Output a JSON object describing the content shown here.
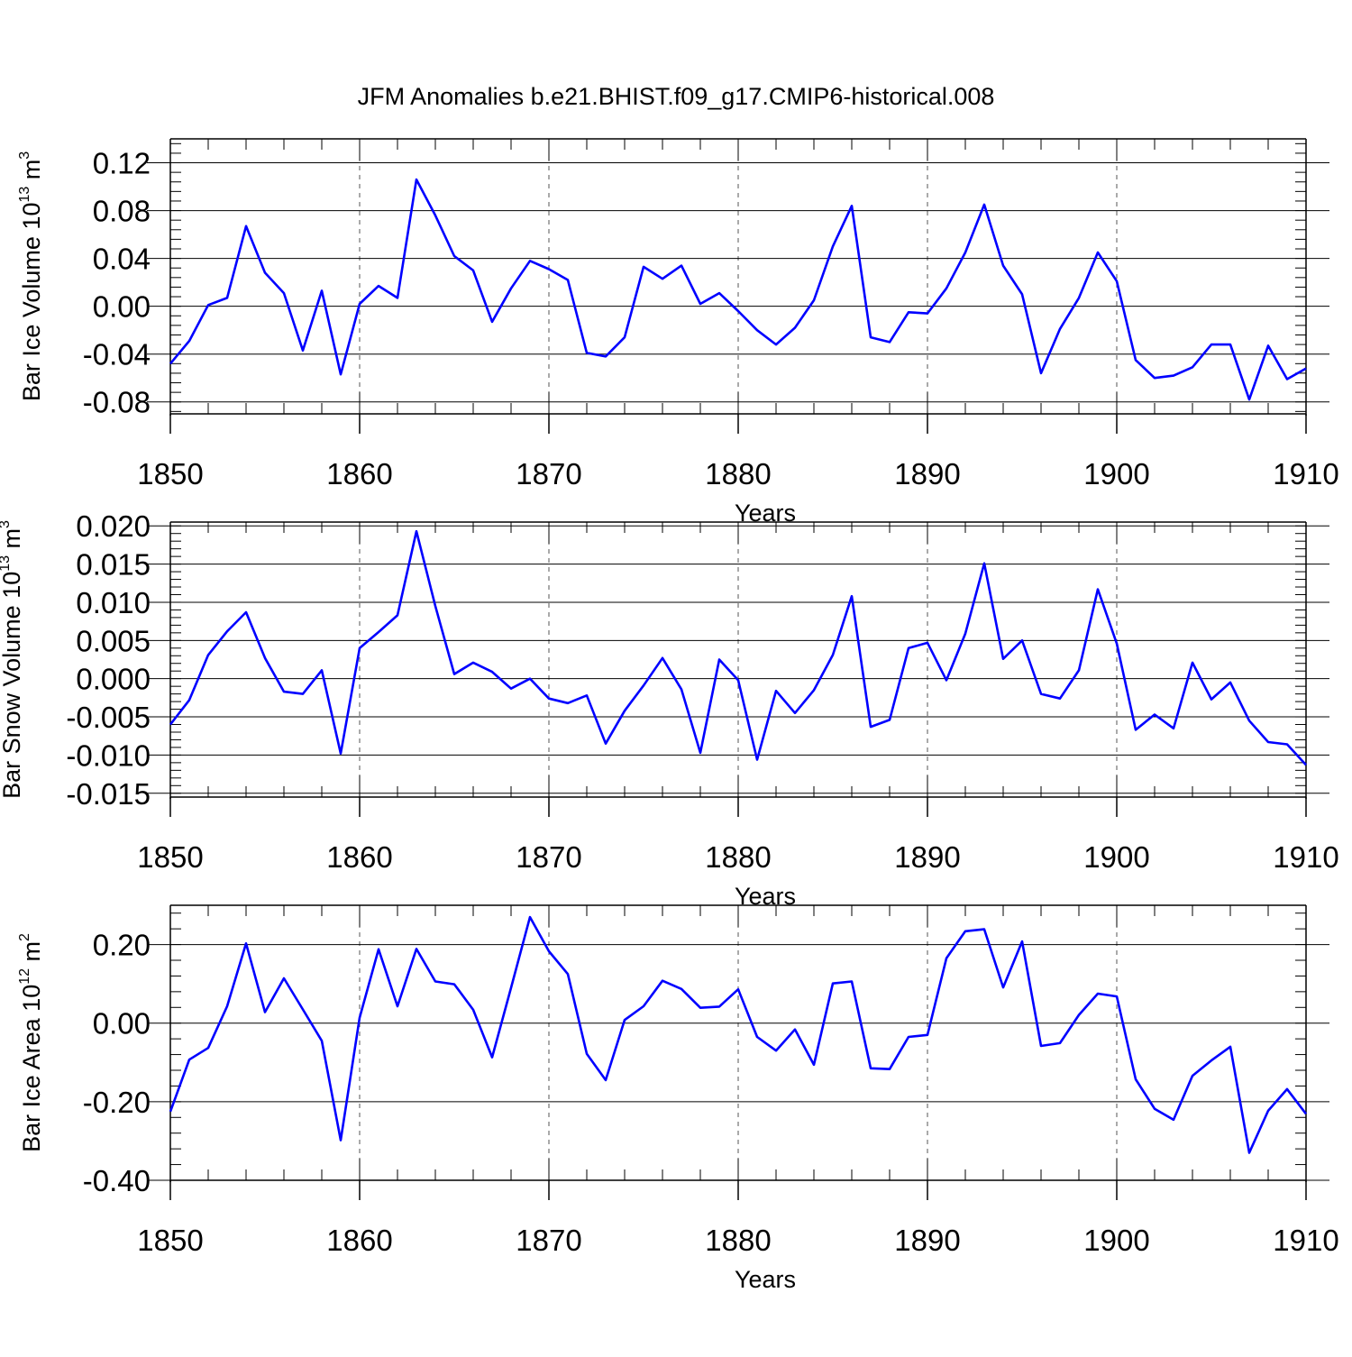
{
  "title": "JFM Anomalies b.e21.BHIST.f09_g17.CMIP6-historical.008",
  "colors": {
    "line": "#0000ff",
    "axis": "#000000",
    "grid": "#555555"
  },
  "chart_data": [
    {
      "type": "line",
      "title": "JFM Anomalies b.e21.BHIST.f09_g17.CMIP6-historical.008",
      "xlabel": "Years",
      "ylabel_main": "Bar Ice Volume 10",
      "ylabel_exp": "13",
      "ylabel_unit": "m",
      "ylabel_unit_exp": "3",
      "xlim": [
        1850,
        1910
      ],
      "ylim": [
        -0.09,
        0.14
      ],
      "x_ticks": [
        1850,
        1860,
        1870,
        1880,
        1890,
        1900,
        1910
      ],
      "x_tick_labels": [
        "1850",
        "1860",
        "1870",
        "1880",
        "1890",
        "1900",
        "1910"
      ],
      "y_ticks": [
        -0.08,
        -0.04,
        0.0,
        0.04,
        0.08,
        0.12
      ],
      "y_tick_labels": [
        "-0.08",
        "-0.04",
        "0.00",
        "0.04",
        "0.08",
        "0.12"
      ],
      "y_minor_step": 0.008,
      "x_start": 1850,
      "values": [
        -0.048,
        -0.029,
        0.001,
        0.007,
        0.067,
        0.028,
        0.011,
        -0.037,
        0.013,
        -0.057,
        0.002,
        0.017,
        0.007,
        0.106,
        0.076,
        0.042,
        0.03,
        -0.013,
        0.015,
        0.038,
        0.031,
        0.022,
        -0.039,
        -0.042,
        -0.026,
        0.033,
        0.023,
        0.034,
        0.002,
        0.011,
        -0.004,
        -0.02,
        -0.032,
        -0.018,
        0.005,
        0.05,
        0.084,
        -0.026,
        -0.03,
        -0.005,
        -0.006,
        0.015,
        0.045,
        0.085,
        0.034,
        0.01,
        -0.056,
        -0.019,
        0.007,
        0.045,
        0.021,
        -0.045,
        -0.06,
        -0.058,
        -0.051,
        -0.032,
        -0.032,
        -0.078,
        -0.033,
        -0.061,
        -0.052
      ]
    },
    {
      "type": "line",
      "xlabel": "Years",
      "ylabel_main": "Bar Snow Volume 10",
      "ylabel_exp": "13",
      "ylabel_unit": "m",
      "ylabel_unit_exp": "3",
      "xlim": [
        1850,
        1910
      ],
      "ylim": [
        -0.0155,
        0.0205
      ],
      "x_ticks": [
        1850,
        1860,
        1870,
        1880,
        1890,
        1900,
        1910
      ],
      "x_tick_labels": [
        "1850",
        "1860",
        "1870",
        "1880",
        "1890",
        "1900",
        "1910"
      ],
      "y_ticks": [
        -0.015,
        -0.01,
        -0.005,
        0.0,
        0.005,
        0.01,
        0.015,
        0.02
      ],
      "y_tick_labels": [
        "-0.015",
        "-0.010",
        "-0.005",
        "0.000",
        "0.005",
        "0.010",
        "0.015",
        "0.020"
      ],
      "y_minor_step": 0.001,
      "x_start": 1850,
      "values": [
        -0.006,
        -0.0028,
        0.0031,
        0.0062,
        0.0087,
        0.0027,
        -0.0017,
        -0.002,
        0.0011,
        -0.0098,
        0.004,
        0.0061,
        0.0083,
        0.0193,
        0.0095,
        0.0006,
        0.0021,
        0.0009,
        -0.0013,
        0.0,
        -0.0026,
        -0.0032,
        -0.0022,
        -0.0085,
        -0.0042,
        -0.0009,
        0.0027,
        -0.0014,
        -0.0097,
        0.0025,
        -0.0002,
        -0.0106,
        -0.0016,
        -0.0045,
        -0.0015,
        0.0031,
        0.0108,
        -0.0063,
        -0.0054,
        0.004,
        0.0047,
        -0.0002,
        0.0059,
        0.0151,
        0.0026,
        0.005,
        -0.002,
        -0.0026,
        0.0011,
        0.0117,
        0.0046,
        -0.0067,
        -0.0047,
        -0.0065,
        0.0021,
        -0.0027,
        -0.0005,
        -0.0055,
        -0.0083,
        -0.0086,
        -0.0113
      ]
    },
    {
      "type": "line",
      "xlabel": "Years",
      "ylabel_main": "Bar Ice Area 10",
      "ylabel_exp": "12",
      "ylabel_unit": "m",
      "ylabel_unit_exp": "2",
      "xlim": [
        1850,
        1910
      ],
      "ylim": [
        -0.4,
        0.3
      ],
      "x_ticks": [
        1850,
        1860,
        1870,
        1880,
        1890,
        1900,
        1910
      ],
      "x_tick_labels": [
        "1850",
        "1860",
        "1870",
        "1880",
        "1890",
        "1900",
        "1910"
      ],
      "y_ticks": [
        -0.4,
        -0.2,
        0.0,
        0.2
      ],
      "y_tick_labels": [
        "-0.40",
        "-0.20",
        "0.00",
        "0.20"
      ],
      "y_minor_step": 0.04,
      "x_start": 1850,
      "values": [
        -0.225,
        -0.093,
        -0.063,
        0.043,
        0.203,
        0.028,
        0.114,
        0.035,
        -0.045,
        -0.298,
        0.014,
        0.188,
        0.043,
        0.189,
        0.106,
        0.099,
        0.034,
        -0.087,
        0.09,
        0.27,
        0.183,
        0.125,
        -0.078,
        -0.145,
        0.008,
        0.043,
        0.108,
        0.087,
        0.039,
        0.042,
        0.086,
        -0.035,
        -0.07,
        -0.016,
        -0.106,
        0.101,
        0.106,
        -0.115,
        -0.117,
        -0.035,
        -0.03,
        0.165,
        0.234,
        0.239,
        0.091,
        0.208,
        -0.058,
        -0.051,
        0.021,
        0.075,
        0.068,
        -0.143,
        -0.218,
        -0.246,
        -0.134,
        -0.095,
        -0.06,
        -0.33,
        -0.223,
        -0.168,
        -0.231
      ]
    }
  ]
}
